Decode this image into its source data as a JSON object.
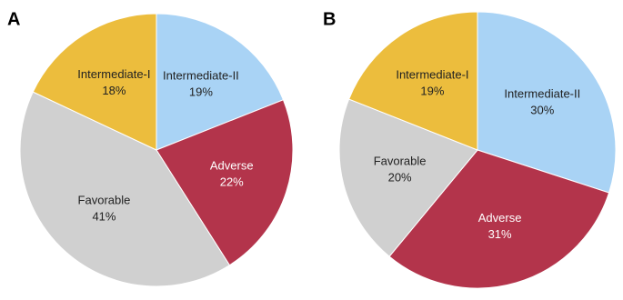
{
  "chart_data": [
    {
      "type": "pie",
      "title": "A",
      "categories": [
        "Intermediate-II",
        "Adverse",
        "Favorable",
        "Intermediate-I"
      ],
      "values": [
        19,
        22,
        41,
        18
      ],
      "value_labels": [
        "19%",
        "22%",
        "41%",
        "18%"
      ],
      "colors": [
        "#a9d3f5",
        "#b3344b",
        "#d0d0d0",
        "#ecbd3d"
      ]
    },
    {
      "type": "pie",
      "title": "B",
      "categories": [
        "Intermediate-II",
        "Adverse",
        "Favorable",
        "Intermediate-I"
      ],
      "values": [
        30,
        31,
        20,
        19
      ],
      "value_labels": [
        "30%",
        "31%",
        "20%",
        "19%"
      ],
      "colors": [
        "#a9d3f5",
        "#b3344b",
        "#d0d0d0",
        "#ecbd3d"
      ]
    }
  ]
}
